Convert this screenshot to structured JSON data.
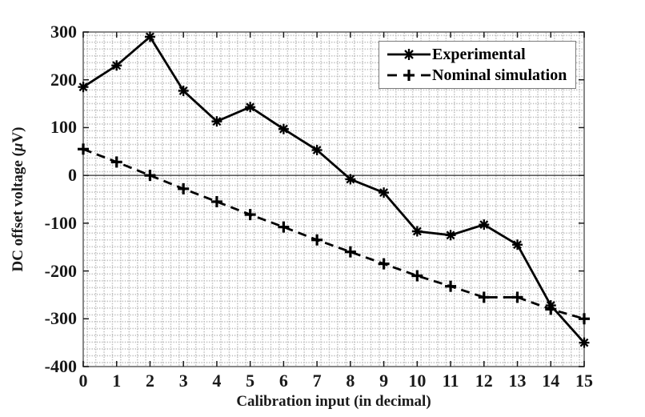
{
  "chart_data": {
    "type": "line",
    "title": "",
    "xlabel": "Calibration input (in decimal)",
    "ylabel": "DC offset voltage (μV)",
    "ylabel_parts": {
      "prefix": "DC offset voltage (",
      "mu": "μ",
      "suffix": "V)"
    },
    "xlim": [
      0,
      15
    ],
    "ylim": [
      -400,
      300
    ],
    "x_ticks": [
      0,
      1,
      2,
      3,
      4,
      5,
      6,
      7,
      8,
      9,
      10,
      11,
      12,
      13,
      14,
      15
    ],
    "y_ticks": [
      300,
      200,
      100,
      0,
      -100,
      -200,
      -300,
      -400
    ],
    "grid": "minor-dotted",
    "zero_line": true,
    "x": [
      0,
      1,
      2,
      3,
      4,
      5,
      6,
      7,
      8,
      9,
      10,
      11,
      12,
      13,
      14,
      15
    ],
    "series": [
      {
        "name": "Experimental",
        "line_style": "solid",
        "marker": "asterisk",
        "color": "#000000",
        "values": [
          185,
          230,
          290,
          177,
          113,
          143,
          97,
          53,
          -8,
          -36,
          -117,
          -125,
          -103,
          -145,
          -272,
          -350
        ]
      },
      {
        "name": "Nominal simulation",
        "line_style": "dashed",
        "marker": "plus",
        "color": "#000000",
        "values": [
          55,
          28,
          0,
          -28,
          -55,
          -82,
          -108,
          -135,
          -160,
          -185,
          -210,
          -232,
          -255,
          -255,
          -280,
          -300
        ]
      }
    ],
    "legend": {
      "position": "top-right",
      "entries": [
        "Experimental",
        "Nominal simulation"
      ]
    },
    "colors": {
      "axis_frame": "#7b7b7b",
      "tick": "#1a1a1a",
      "minor_grid_dot": "#bdbdbd",
      "series": "#000000",
      "zero_line": "#2b2b2b"
    }
  }
}
